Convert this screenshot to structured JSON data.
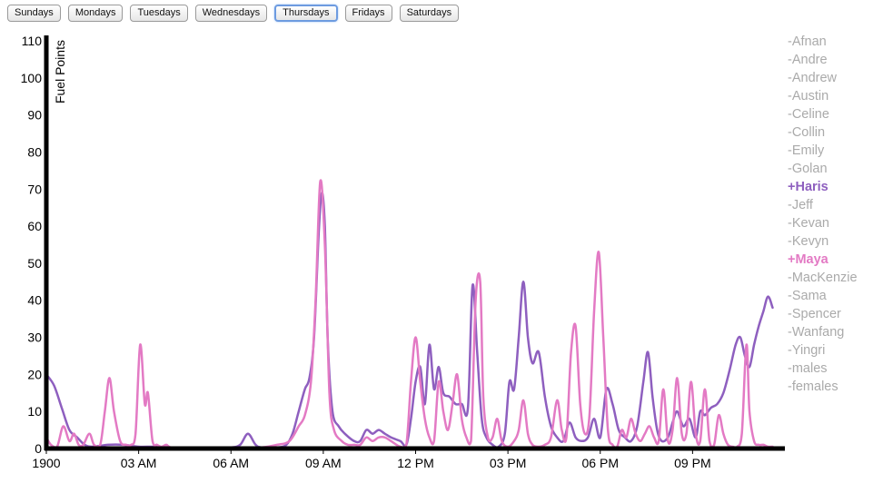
{
  "day_buttons": [
    {
      "label": "Sundays",
      "active": false
    },
    {
      "label": "Mondays",
      "active": false
    },
    {
      "label": "Tuesdays",
      "active": false
    },
    {
      "label": "Wednesdays",
      "active": false
    },
    {
      "label": "Thursdays",
      "active": true
    },
    {
      "label": "Fridays",
      "active": false
    },
    {
      "label": "Saturdays",
      "active": false
    }
  ],
  "legend": [
    {
      "label": "-Afnan",
      "active": false
    },
    {
      "label": "-Andre",
      "active": false
    },
    {
      "label": "-Andrew",
      "active": false
    },
    {
      "label": "-Austin",
      "active": false
    },
    {
      "label": "-Celine",
      "active": false
    },
    {
      "label": "-Collin",
      "active": false
    },
    {
      "label": "-Emily",
      "active": false
    },
    {
      "label": "-Golan",
      "active": false
    },
    {
      "label": "+Haris",
      "active": true,
      "color": "#8e5fbf"
    },
    {
      "label": "-Jeff",
      "active": false
    },
    {
      "label": "-Kevan",
      "active": false
    },
    {
      "label": "-Kevyn",
      "active": false
    },
    {
      "label": "+Maya",
      "active": true,
      "color": "#e37ac4"
    },
    {
      "label": "-MacKenzie",
      "active": false
    },
    {
      "label": "-Sama",
      "active": false
    },
    {
      "label": "-Spencer",
      "active": false
    },
    {
      "label": "-Wanfang",
      "active": false
    },
    {
      "label": "-Yingri",
      "active": false
    },
    {
      "label": "-males",
      "active": false
    },
    {
      "label": "-females",
      "active": false
    }
  ],
  "chart_data": {
    "type": "line",
    "ylabel": "Fuel Points",
    "ylim": [
      0,
      110
    ],
    "yticks": [
      0,
      10,
      20,
      30,
      40,
      50,
      60,
      70,
      80,
      90,
      100,
      110
    ],
    "xlim": [
      0,
      24
    ],
    "xticks": [
      {
        "hour": 0,
        "label": "1900"
      },
      {
        "hour": 3,
        "label": "03 AM"
      },
      {
        "hour": 6,
        "label": "06 AM"
      },
      {
        "hour": 9,
        "label": "09 AM"
      },
      {
        "hour": 12,
        "label": "12 PM"
      },
      {
        "hour": 15,
        "label": "03 PM"
      },
      {
        "hour": 18,
        "label": "06 PM"
      },
      {
        "hour": 21,
        "label": "09 PM"
      }
    ],
    "series": [
      {
        "name": "Haris",
        "color": "#8e5fbf",
        "points": [
          [
            0,
            20
          ],
          [
            0.25,
            17
          ],
          [
            0.5,
            11
          ],
          [
            0.75,
            5
          ],
          [
            1,
            3
          ],
          [
            1.25,
            1
          ],
          [
            1.5,
            0.5
          ],
          [
            2,
            1
          ],
          [
            2.5,
            1
          ],
          [
            3,
            0.5
          ],
          [
            3.5,
            0.5
          ],
          [
            4,
            0.3
          ],
          [
            4.5,
            0.3
          ],
          [
            5,
            0.3
          ],
          [
            5.5,
            0.3
          ],
          [
            6,
            0.3
          ],
          [
            6.3,
            1
          ],
          [
            6.55,
            4
          ],
          [
            6.8,
            1
          ],
          [
            7,
            0.3
          ],
          [
            7.5,
            0.3
          ],
          [
            7.8,
            1
          ],
          [
            8,
            4
          ],
          [
            8.2,
            10
          ],
          [
            8.4,
            16
          ],
          [
            8.55,
            19
          ],
          [
            8.7,
            30
          ],
          [
            8.85,
            58
          ],
          [
            8.95,
            69
          ],
          [
            9.05,
            60
          ],
          [
            9.15,
            28
          ],
          [
            9.3,
            10
          ],
          [
            9.5,
            6
          ],
          [
            9.7,
            4
          ],
          [
            10,
            2
          ],
          [
            10.2,
            2
          ],
          [
            10.4,
            5
          ],
          [
            10.6,
            4
          ],
          [
            10.8,
            5
          ],
          [
            11,
            4
          ],
          [
            11.2,
            3
          ],
          [
            11.5,
            2
          ],
          [
            11.7,
            1
          ],
          [
            11.85,
            8
          ],
          [
            12,
            18
          ],
          [
            12.15,
            22
          ],
          [
            12.3,
            12
          ],
          [
            12.45,
            28
          ],
          [
            12.6,
            16
          ],
          [
            12.75,
            22
          ],
          [
            12.9,
            15
          ],
          [
            13.1,
            14
          ],
          [
            13.3,
            12
          ],
          [
            13.5,
            12
          ],
          [
            13.7,
            11
          ],
          [
            13.85,
            44
          ],
          [
            14,
            26
          ],
          [
            14.15,
            8
          ],
          [
            14.3,
            3
          ],
          [
            14.5,
            1
          ],
          [
            14.7,
            0.5
          ],
          [
            14.9,
            4
          ],
          [
            15.05,
            18
          ],
          [
            15.2,
            16
          ],
          [
            15.35,
            30
          ],
          [
            15.5,
            45
          ],
          [
            15.65,
            30
          ],
          [
            15.8,
            23
          ],
          [
            16,
            26
          ],
          [
            16.2,
            14
          ],
          [
            16.4,
            6
          ],
          [
            16.6,
            3
          ],
          [
            16.8,
            2
          ],
          [
            17,
            7
          ],
          [
            17.2,
            3
          ],
          [
            17.4,
            2
          ],
          [
            17.6,
            3
          ],
          [
            17.8,
            8
          ],
          [
            18,
            3
          ],
          [
            18.2,
            16
          ],
          [
            18.4,
            12
          ],
          [
            18.6,
            5
          ],
          [
            18.8,
            3
          ],
          [
            19,
            2
          ],
          [
            19.2,
            6
          ],
          [
            19.4,
            18
          ],
          [
            19.55,
            26
          ],
          [
            19.7,
            14
          ],
          [
            19.85,
            5
          ],
          [
            20,
            2
          ],
          [
            20.2,
            3
          ],
          [
            20.35,
            7
          ],
          [
            20.5,
            10
          ],
          [
            20.7,
            6
          ],
          [
            20.9,
            8
          ],
          [
            21.1,
            3
          ],
          [
            21.25,
            10
          ],
          [
            21.4,
            9
          ],
          [
            21.6,
            11
          ],
          [
            21.8,
            12
          ],
          [
            22,
            15
          ],
          [
            22.2,
            21
          ],
          [
            22.4,
            28
          ],
          [
            22.55,
            30
          ],
          [
            22.7,
            25
          ],
          [
            22.85,
            22
          ],
          [
            23,
            28
          ],
          [
            23.15,
            33
          ],
          [
            23.3,
            37
          ],
          [
            23.45,
            41
          ],
          [
            23.6,
            38
          ]
        ]
      },
      {
        "name": "Maya",
        "color": "#e37ac4",
        "points": [
          [
            0,
            3
          ],
          [
            0.15,
            1
          ],
          [
            0.35,
            0.5
          ],
          [
            0.55,
            6
          ],
          [
            0.75,
            2
          ],
          [
            0.9,
            4
          ],
          [
            1.05,
            1
          ],
          [
            1.2,
            1
          ],
          [
            1.4,
            4
          ],
          [
            1.55,
            1
          ],
          [
            1.75,
            1
          ],
          [
            1.9,
            10
          ],
          [
            2.05,
            19
          ],
          [
            2.2,
            10
          ],
          [
            2.4,
            2
          ],
          [
            2.6,
            1
          ],
          [
            2.75,
            1
          ],
          [
            2.9,
            4
          ],
          [
            3.05,
            28
          ],
          [
            3.2,
            12
          ],
          [
            3.3,
            15
          ],
          [
            3.45,
            2
          ],
          [
            3.6,
            1
          ],
          [
            3.75,
            0.5
          ],
          [
            3.9,
            1
          ],
          [
            4.05,
            0.3
          ],
          [
            4.5,
            0.3
          ],
          [
            5,
            0.3
          ],
          [
            5.5,
            0.3
          ],
          [
            6,
            0.3
          ],
          [
            6.5,
            0.3
          ],
          [
            7,
            0.3
          ],
          [
            7.5,
            1
          ],
          [
            7.9,
            2
          ],
          [
            8.2,
            6
          ],
          [
            8.4,
            9
          ],
          [
            8.6,
            18
          ],
          [
            8.75,
            40
          ],
          [
            8.9,
            72
          ],
          [
            9.05,
            55
          ],
          [
            9.2,
            15
          ],
          [
            9.35,
            5
          ],
          [
            9.6,
            2
          ],
          [
            9.8,
            1
          ],
          [
            10,
            1
          ],
          [
            10.2,
            1
          ],
          [
            10.4,
            3
          ],
          [
            10.6,
            2
          ],
          [
            10.8,
            3
          ],
          [
            11,
            3
          ],
          [
            11.2,
            2
          ],
          [
            11.5,
            0.5
          ],
          [
            11.7,
            1
          ],
          [
            11.85,
            18
          ],
          [
            12,
            30
          ],
          [
            12.15,
            18
          ],
          [
            12.3,
            8
          ],
          [
            12.45,
            3
          ],
          [
            12.6,
            2
          ],
          [
            12.75,
            18
          ],
          [
            12.9,
            10
          ],
          [
            13.05,
            5
          ],
          [
            13.2,
            12
          ],
          [
            13.35,
            20
          ],
          [
            13.5,
            8
          ],
          [
            13.65,
            3
          ],
          [
            13.8,
            2
          ],
          [
            13.95,
            40
          ],
          [
            14.1,
            45
          ],
          [
            14.2,
            14
          ],
          [
            14.35,
            3
          ],
          [
            14.5,
            3
          ],
          [
            14.65,
            8
          ],
          [
            14.8,
            2
          ],
          [
            15,
            0.5
          ],
          [
            15.2,
            2
          ],
          [
            15.35,
            5
          ],
          [
            15.5,
            13
          ],
          [
            15.65,
            4
          ],
          [
            15.8,
            1
          ],
          [
            16,
            0.5
          ],
          [
            16.2,
            1
          ],
          [
            16.4,
            3
          ],
          [
            16.6,
            13
          ],
          [
            16.75,
            5
          ],
          [
            16.9,
            3
          ],
          [
            17.05,
            26
          ],
          [
            17.2,
            33
          ],
          [
            17.35,
            12
          ],
          [
            17.5,
            4
          ],
          [
            17.65,
            9
          ],
          [
            17.8,
            37
          ],
          [
            17.95,
            53
          ],
          [
            18.1,
            30
          ],
          [
            18.25,
            5
          ],
          [
            18.4,
            1
          ],
          [
            18.55,
            0.5
          ],
          [
            18.7,
            5
          ],
          [
            18.85,
            3
          ],
          [
            19,
            8
          ],
          [
            19.15,
            4
          ],
          [
            19.3,
            2
          ],
          [
            19.45,
            4
          ],
          [
            19.6,
            6
          ],
          [
            19.75,
            3
          ],
          [
            19.9,
            2
          ],
          [
            20.05,
            16
          ],
          [
            20.2,
            2
          ],
          [
            20.35,
            5
          ],
          [
            20.5,
            19
          ],
          [
            20.65,
            4
          ],
          [
            20.8,
            4
          ],
          [
            20.95,
            18
          ],
          [
            21.1,
            4
          ],
          [
            21.25,
            2
          ],
          [
            21.4,
            16
          ],
          [
            21.55,
            2
          ],
          [
            21.7,
            1
          ],
          [
            21.85,
            9
          ],
          [
            22,
            4
          ],
          [
            22.15,
            1
          ],
          [
            22.3,
            0.5
          ],
          [
            22.45,
            0.5
          ],
          [
            22.6,
            4
          ],
          [
            22.75,
            28
          ],
          [
            22.85,
            10
          ],
          [
            23,
            2
          ],
          [
            23.15,
            1
          ],
          [
            23.3,
            1
          ],
          [
            23.45,
            0.5
          ],
          [
            23.6,
            0.5
          ]
        ]
      }
    ]
  }
}
